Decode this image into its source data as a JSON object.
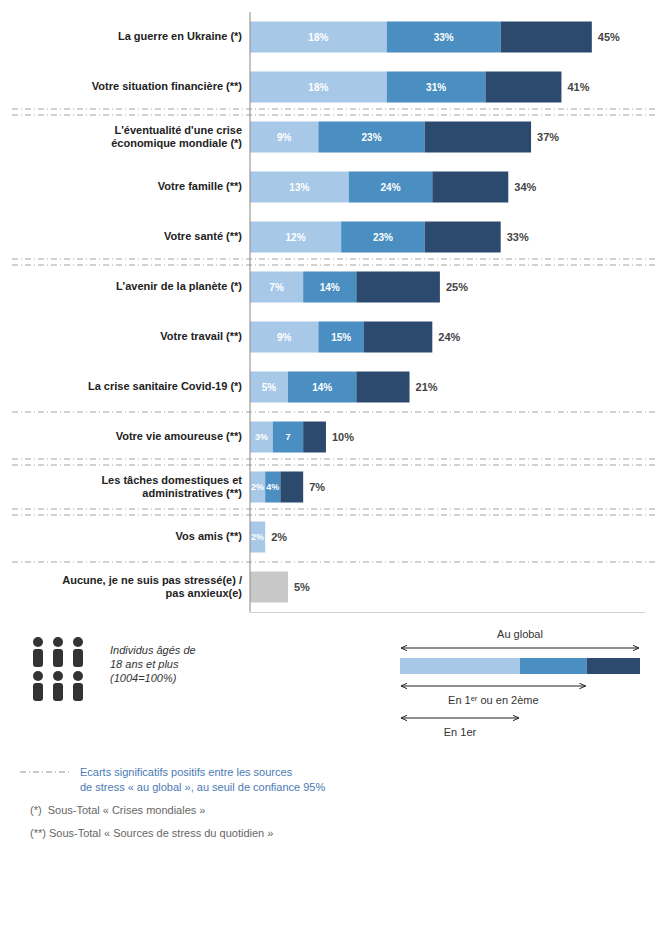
{
  "chart_data": {
    "type": "bar",
    "orientation": "horizontal",
    "stacked": true,
    "data_labels": true,
    "grid": false,
    "tick_labels": false,
    "legend": "bottom right",
    "categories": [
      "La guerre en Ukraine (*)",
      "Votre situation financière (**)",
      "L'éventualité d'une crise\néconomique mondiale (*)",
      "Votre famille (**)",
      "Votre santé (**)",
      "L'avenir de la planète (*)",
      "Votre travail (**)",
      "La crise sanitaire Covid-19 (*)",
      "Votre vie amoureuse (**)",
      "Les tâches domestiques et\nadministratives (**)",
      "Vos amis (**)",
      "Aucune, je ne suis pas stressé(e) /\npas anxieux(e)"
    ],
    "xlim": [
      0,
      52
    ],
    "series": [
      {
        "name": "En 1er",
        "color": "#a8c8e8",
        "values": [
          18,
          18,
          9,
          13,
          12,
          7,
          9,
          5,
          3,
          2,
          2,
          0
        ],
        "value_labels": [
          "18%",
          "18%",
          "9%",
          "13%",
          "12%",
          "7%",
          "9%",
          "5%",
          "3%",
          "2%",
          "2%",
          null
        ]
      },
      {
        "name": "En 1ᵉʳ ou en 2ème",
        "color": "#4a8ec2",
        "values": [
          15,
          13,
          14,
          11,
          11,
          7,
          6,
          9,
          4,
          2,
          0,
          0
        ],
        "cumulative": [
          33,
          31,
          23,
          24,
          23,
          14,
          15,
          14,
          7,
          4,
          null,
          null
        ],
        "cumulative_labels": [
          "33%",
          "31%",
          "23%",
          "24%",
          "23%",
          "14%",
          "15%",
          "14%",
          "7",
          "4%",
          null,
          null
        ]
      },
      {
        "name": "Au global",
        "color": "#2c4a6e",
        "colors": [
          "#2c4a6e",
          "#2c4a6e",
          "#2c4a6e",
          "#2c4a6e",
          "#2c4a6e",
          "#2c4a6e",
          "#2c4a6e",
          "#2c4a6e",
          "#2c4a6e",
          "#2c4a6e",
          "#2c4a6e",
          "#c8c8c8"
        ],
        "values": [
          12,
          10,
          14,
          10,
          10,
          11,
          9,
          7,
          3,
          3,
          0,
          5
        ],
        "cumulative": [
          45,
          41,
          37,
          34,
          33,
          25,
          24,
          21,
          10,
          7,
          2,
          5
        ],
        "cumulative_labels": [
          "45%",
          "41%",
          "37%",
          "34%",
          "33%",
          "25%",
          "24%",
          "21%",
          "10%",
          "7%",
          "2%",
          "5%"
        ]
      }
    ],
    "separators": [
      {
        "after": 1,
        "style": "dashdot2"
      },
      {
        "after": 4,
        "style": "dashdot2"
      },
      {
        "after": 7,
        "style": "dashdot1"
      },
      {
        "after": 8,
        "style": "dashdot2"
      },
      {
        "after": 9,
        "style": "dashdot2"
      },
      {
        "after": 10,
        "style": "dashdot1"
      }
    ],
    "note": "Individus âgés de\n18 ans et plus\n(1004=100%)",
    "footnotes": [
      "Ecarts significatifs positifs entre les sources\nde stress « au global », au seuil de confiance 95%",
      "(*)  Sous-Total « Crises mondiales »",
      "(**) Sous-Total « Sources de stress du quotidien »"
    ]
  }
}
